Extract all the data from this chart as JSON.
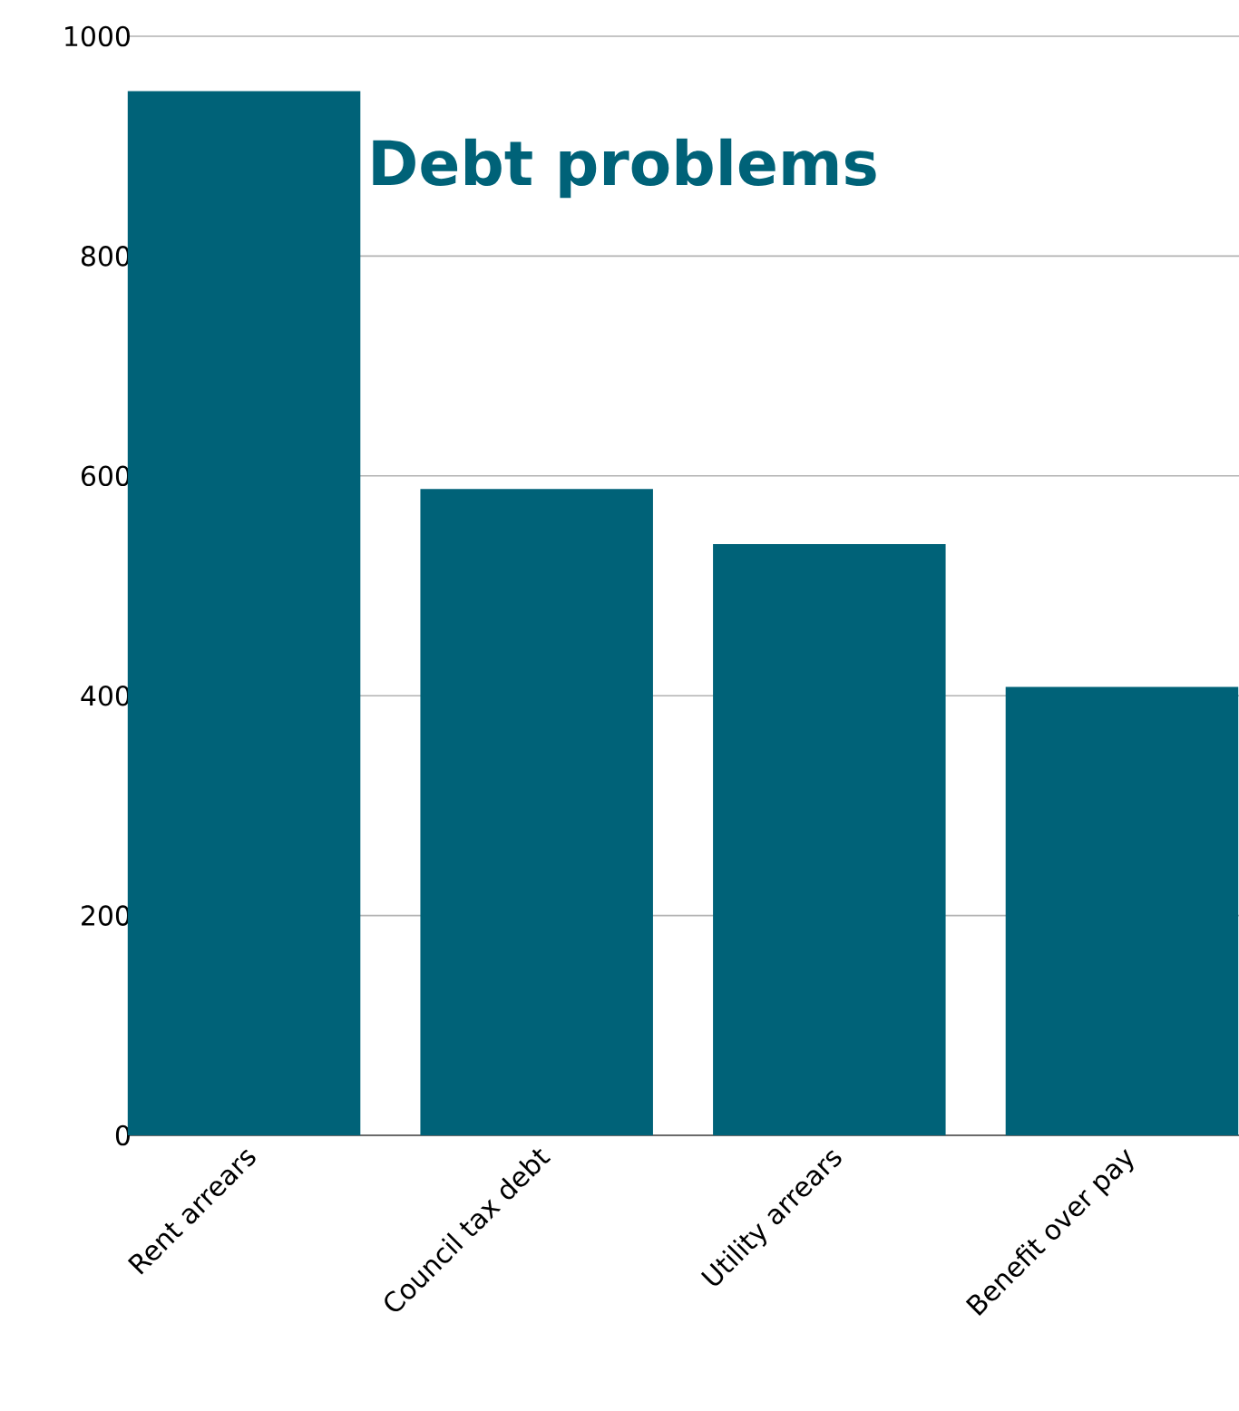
{
  "chart_data": {
    "type": "bar",
    "title": "Debt problems",
    "categories": [
      "Rent arrears",
      "Council tax debt",
      "Utility arrears",
      "Benefit over pay"
    ],
    "values": [
      950,
      588,
      538,
      408
    ],
    "color": "#006278",
    "ylim": [
      0,
      1000
    ],
    "yticks": [
      0,
      200,
      400,
      600,
      800,
      1000
    ],
    "grid": "y"
  }
}
